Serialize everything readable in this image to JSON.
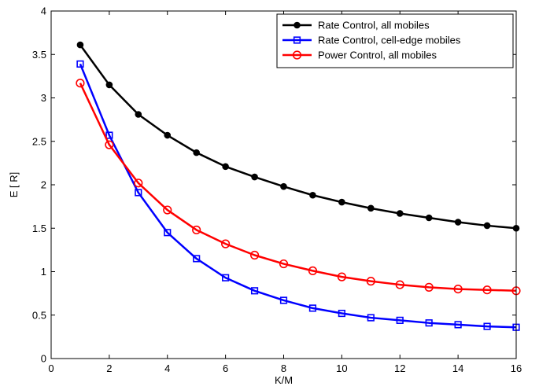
{
  "chart_data": {
    "type": "line",
    "title": "",
    "xlabel": "K/M",
    "ylabel": "E [ R]",
    "xlim": [
      0,
      16
    ],
    "ylim": [
      0,
      4
    ],
    "xticks": [
      0,
      2,
      4,
      6,
      8,
      10,
      12,
      14,
      16
    ],
    "yticks": [
      0,
      0.5,
      1,
      1.5,
      2,
      2.5,
      3,
      3.5,
      4
    ],
    "ytick_labels": [
      "0",
      "0.5",
      "1",
      "1.5",
      "2",
      "2.5",
      "3",
      "3.5",
      "4"
    ],
    "grid": false,
    "legend_placement": "top-right",
    "x": [
      1,
      2,
      3,
      4,
      5,
      6,
      7,
      8,
      9,
      10,
      11,
      12,
      13,
      14,
      15,
      16
    ],
    "series": [
      {
        "name": "Rate Control, all mobiles",
        "color": "#000000",
        "marker": "filled-circle",
        "values": [
          3.61,
          3.15,
          2.81,
          2.57,
          2.37,
          2.21,
          2.09,
          1.98,
          1.88,
          1.8,
          1.73,
          1.67,
          1.62,
          1.57,
          1.53,
          1.5
        ]
      },
      {
        "name": "Rate Control, cell-edge mobiles",
        "color": "#0000ff",
        "marker": "open-square",
        "values": [
          3.39,
          2.57,
          1.91,
          1.45,
          1.15,
          0.93,
          0.78,
          0.67,
          0.58,
          0.52,
          0.47,
          0.44,
          0.41,
          0.39,
          0.37,
          0.36
        ]
      },
      {
        "name": "Power Control, all mobiles",
        "color": "#ff0000",
        "marker": "open-circle",
        "values": [
          3.17,
          2.46,
          2.02,
          1.71,
          1.48,
          1.32,
          1.19,
          1.09,
          1.01,
          0.94,
          0.89,
          0.85,
          0.82,
          0.8,
          0.79,
          0.78
        ]
      }
    ]
  }
}
